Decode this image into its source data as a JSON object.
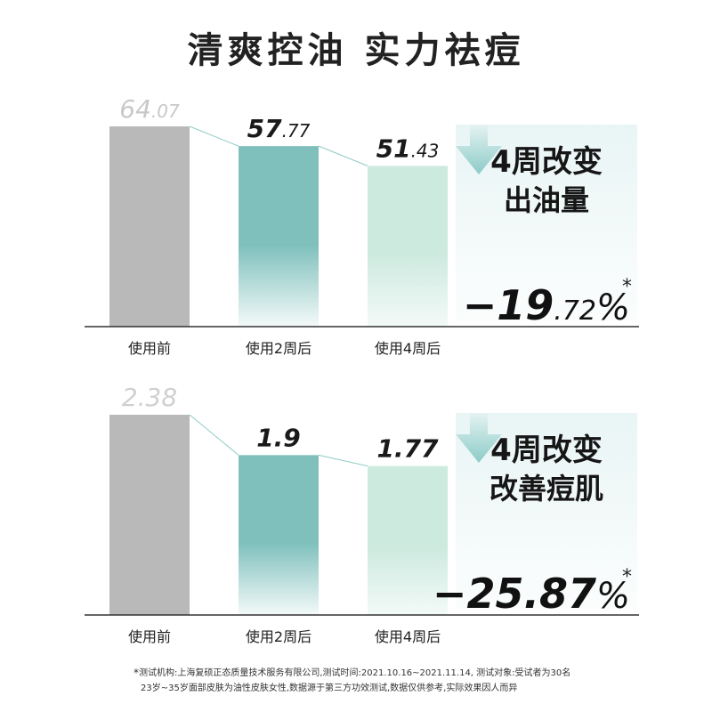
{
  "title": "清爽控油 实力祛痘",
  "chart_data": [
    {
      "type": "bar",
      "categories": [
        "使用前",
        "使用2周后",
        "使用4周后"
      ],
      "values": [
        64.07,
        57.77,
        51.43
      ],
      "value_labels": [
        {
          "int": "64",
          "dec": ".07"
        },
        {
          "int": "57",
          "dec": ".77"
        },
        {
          "int": "51",
          "dec": ".43"
        }
      ],
      "ylim": [
        0,
        64.07
      ],
      "colors": [
        "#b9b9b9",
        "#7fc0bd",
        "#cdeadf"
      ],
      "label_colors": [
        "#c8c8c8",
        "#1a1a1a",
        "#1a1a1a"
      ],
      "side": {
        "line1": "4周改变",
        "line2": "出油量",
        "change": "−19",
        "change_dec": ".72",
        "percent": "%",
        "star": "*"
      }
    },
    {
      "type": "bar",
      "categories": [
        "使用前",
        "使用2周后",
        "使用4周后"
      ],
      "values": [
        2.38,
        1.9,
        1.77
      ],
      "value_labels": [
        {
          "int": "2.38",
          "dec": ""
        },
        {
          "int": "1.9",
          "dec": ""
        },
        {
          "int": "1.77",
          "dec": ""
        }
      ],
      "ylim": [
        0,
        2.38
      ],
      "colors": [
        "#b9b9b9",
        "#7fc0bd",
        "#cdeadf"
      ],
      "label_colors": [
        "#d0d0d0",
        "#1a1a1a",
        "#1a1a1a"
      ],
      "side": {
        "line1": "4周改变",
        "line2": "改善痘肌",
        "change": "−25",
        "change_dec": ".87",
        "percent": "%",
        "star": "*"
      }
    }
  ],
  "footnote": {
    "star": "*",
    "line1": "测试机构:上海复硕正态质量技术服务有限公司,测试时间:2021.10.16~2021.11.14,  测试对象:受试者为30名",
    "line2": "23岁~35岁面部皮肤为油性皮肤女性,数据源于第三方功效测试,数据仅供参考,实际效果因人而异"
  }
}
